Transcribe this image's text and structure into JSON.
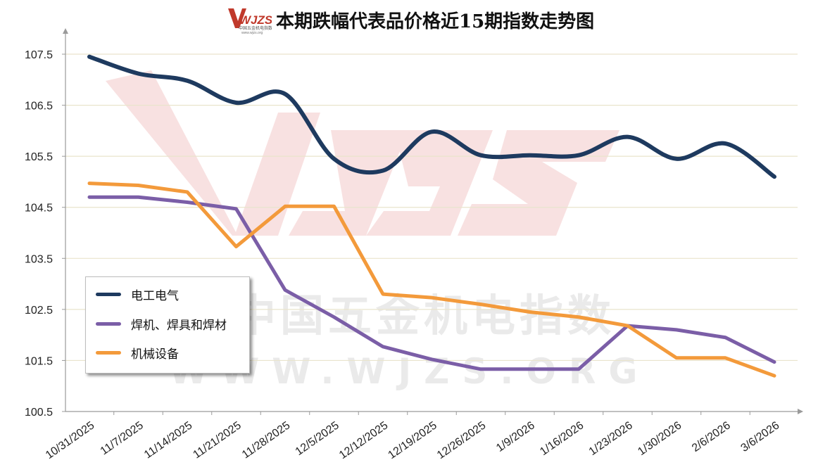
{
  "title": "本期跌幅代表品价格近15期指数走势图",
  "logo": {
    "text": "WJZS",
    "subtext": "中国五金机电指数",
    "url_text": "www.wjzs.org"
  },
  "watermark": {
    "big": "WJZS",
    "cn": "中国五金机电指数",
    "url": "WWW.WJZS.ORG"
  },
  "colors": {
    "electric": "#1e3a5f",
    "welding": "#7b5ea7",
    "machinery": "#f39a3b",
    "grid": "#e9e4cc",
    "axis": "#9a9a9a"
  },
  "chart_data": {
    "type": "line",
    "title": "本期跌幅代表品价格近15期指数走势图",
    "categories": [
      "10/31/2025",
      "11/7/2025",
      "11/14/2025",
      "11/21/2025",
      "11/28/2025",
      "12/5/2025",
      "12/12/2025",
      "12/19/2025",
      "12/26/2025",
      "1/9/2026",
      "1/16/2026",
      "1/23/2026",
      "1/30/2026",
      "2/6/2026",
      "3/6/2026"
    ],
    "yticks": [
      "100.5",
      "101.5",
      "102.5",
      "103.5",
      "104.5",
      "105.5",
      "106.5",
      "107.5"
    ],
    "ylim": [
      100.5,
      107.9
    ],
    "legend_position": "left",
    "series": [
      {
        "name": "电工电气",
        "color": "#1e3a5f",
        "values": [
          107.45,
          107.12,
          106.98,
          106.55,
          106.72,
          105.45,
          105.22,
          105.98,
          105.52,
          105.52,
          105.52,
          105.88,
          105.45,
          105.75,
          105.1
        ]
      },
      {
        "name": "焊机、焊具和焊材",
        "color": "#7b5ea7",
        "values": [
          104.7,
          104.7,
          104.6,
          104.47,
          102.88,
          102.35,
          101.77,
          101.52,
          101.33,
          101.33,
          101.33,
          102.18,
          102.1,
          101.95,
          101.47
        ]
      },
      {
        "name": "机械设备",
        "color": "#f39a3b",
        "values": [
          104.97,
          104.93,
          104.8,
          103.73,
          104.52,
          104.52,
          102.8,
          102.73,
          102.6,
          102.45,
          102.35,
          102.18,
          101.55,
          101.55,
          101.2
        ]
      }
    ]
  }
}
